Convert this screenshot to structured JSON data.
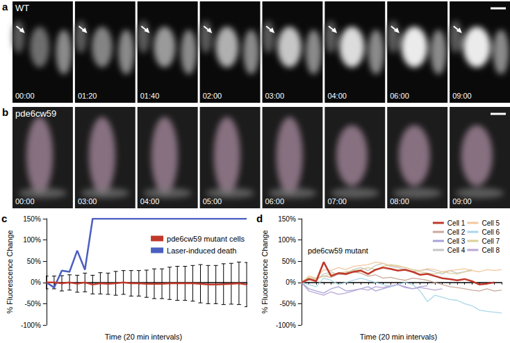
{
  "panels": [
    {
      "panel": "a",
      "title": "WT",
      "timestamps": [
        "00:00",
        "01:20",
        "01:40",
        "02:00",
        "03:00",
        "04:00",
        "06:00",
        "09:00"
      ]
    },
    {
      "panel": "b",
      "title": "pde6cw59",
      "timestamps": [
        "00:00",
        "03:00",
        "04:00",
        "05:00",
        "06:00",
        "07:00",
        "08:00",
        "09:00"
      ]
    }
  ],
  "chart_data": [
    {
      "panel": "c",
      "type": "line",
      "xlabel": "Time (20 min intervals)",
      "ylabel": "% Fluorescence Change",
      "x": [
        0,
        1,
        2,
        3,
        4,
        5,
        6,
        7,
        8,
        9,
        10,
        11,
        12,
        13,
        14,
        15,
        16,
        17,
        18,
        19,
        20,
        21,
        22,
        23,
        24,
        25,
        26
      ],
      "xlim": [
        0,
        26
      ],
      "xticks": [
        0,
        1,
        2,
        3,
        4,
        5,
        6,
        7,
        8,
        9,
        10,
        11,
        12,
        13,
        14,
        15,
        16,
        17,
        18,
        19,
        20,
        21,
        22,
        23,
        24,
        25,
        26
      ],
      "ylim": [
        -100,
        150
      ],
      "yticks": [
        {
          "value": -100,
          "label": "-100%"
        },
        {
          "value": -50,
          "label": "-50%"
        },
        {
          "value": 0,
          "label": "0%"
        },
        {
          "value": 50,
          "label": "50%"
        },
        {
          "value": 100,
          "label": "100%"
        },
        {
          "value": 150,
          "label": "150%"
        }
      ],
      "tick_labels": "y",
      "grid": false,
      "legend": "top-right",
      "series": [
        {
          "name": "pde6cw59 mutant cells",
          "color": "#c0392b",
          "values": [
            0,
            0,
            -2,
            0,
            -3,
            0,
            -5,
            -2,
            -3,
            -2,
            0,
            -2,
            -2,
            -3,
            -3,
            -3,
            -2,
            -2,
            -2,
            -2,
            -3,
            -5,
            -5,
            -4,
            -3,
            -2,
            -5
          ],
          "errors": [
            15,
            15,
            18,
            18,
            20,
            22,
            22,
            25,
            25,
            28,
            28,
            30,
            30,
            32,
            35,
            35,
            38,
            40,
            40,
            42,
            45,
            45,
            45,
            48,
            48,
            50,
            52
          ]
        },
        {
          "name": "Laser-induced death",
          "color": "#4a5fc1",
          "values": [
            0,
            -12,
            28,
            25,
            75,
            30,
            150,
            150,
            150,
            150,
            150,
            150,
            150,
            150,
            150,
            150,
            150,
            150,
            150,
            150,
            150,
            150,
            150,
            150,
            150,
            150,
            150
          ]
        }
      ]
    },
    {
      "panel": "d",
      "type": "line",
      "title": "pde6cw59 mutant",
      "xlabel": "Time (20 min intervals)",
      "ylabel": "% Fluorescence Change",
      "x": [
        0,
        1,
        2,
        3,
        4,
        5,
        6,
        7,
        8,
        9,
        10,
        11,
        12,
        13,
        14,
        15,
        16,
        17,
        18,
        19,
        20,
        21,
        22,
        23,
        24,
        25,
        26,
        27
      ],
      "xlim": [
        0,
        27
      ],
      "xticks": [
        0,
        1,
        2,
        3,
        4,
        5,
        6,
        7,
        8,
        9,
        10,
        11,
        12,
        13,
        14,
        15,
        16,
        17,
        18,
        19,
        20,
        21,
        22,
        23,
        24,
        25,
        26,
        27
      ],
      "ylim": [
        -100,
        150
      ],
      "yticks": [
        {
          "value": -100,
          "label": "-100%"
        },
        {
          "value": -50,
          "label": "-50%"
        },
        {
          "value": 0,
          "label": "0%"
        },
        {
          "value": 50,
          "label": "50%"
        },
        {
          "value": 100,
          "label": "100%"
        },
        {
          "value": 150,
          "label": "150%"
        }
      ],
      "tick_labels": "y",
      "grid": false,
      "legend": "top-right",
      "series": [
        {
          "name": "Cell 1",
          "color": "#c0392b",
          "values": [
            0,
            8,
            3,
            48,
            15,
            22,
            20,
            25,
            28,
            20,
            30,
            35,
            32,
            28,
            30,
            25,
            18,
            20,
            15,
            10,
            8,
            5,
            8,
            3,
            -5,
            -3,
            0,
            null
          ]
        },
        {
          "name": "Cell 2",
          "color": "#c9a89a",
          "values": [
            0,
            5,
            10,
            15,
            12,
            20,
            18,
            25,
            22,
            15,
            18,
            10,
            12,
            8,
            5,
            10,
            8,
            5,
            0,
            -5,
            -10,
            -12,
            -15,
            -18,
            -20,
            -15,
            -20,
            -18
          ]
        },
        {
          "name": "Cell 3",
          "color": "#a7a3d8",
          "values": [
            0,
            -15,
            -20,
            -25,
            -15,
            -10,
            -20,
            -18,
            -15,
            -10,
            -20,
            -15,
            -10,
            -5,
            -12,
            -15,
            -10,
            -8,
            null,
            null,
            null,
            null,
            null,
            null,
            null,
            null,
            null,
            null
          ]
        },
        {
          "name": "Cell 4",
          "color": "#c4c4c4",
          "values": [
            0,
            10,
            5,
            20,
            25,
            18,
            22,
            30,
            35,
            28,
            40,
            45,
            38,
            35,
            30,
            25,
            28,
            30,
            25,
            20,
            28,
            22,
            25,
            30,
            null,
            null,
            null,
            null
          ]
        },
        {
          "name": "Cell 5",
          "color": "#f2c79e",
          "values": [
            0,
            15,
            10,
            30,
            28,
            35,
            30,
            38,
            40,
            42,
            48,
            45,
            40,
            38,
            35,
            30,
            28,
            32,
            30,
            25,
            28,
            30,
            32,
            28,
            25,
            30,
            28,
            30
          ]
        },
        {
          "name": "Cell 6",
          "color": "#a9d7ea",
          "values": [
            0,
            -5,
            -10,
            10,
            5,
            -5,
            0,
            5,
            10,
            5,
            0,
            -5,
            -10,
            -5,
            0,
            -5,
            -20,
            -45,
            -30,
            -35,
            -40,
            -42,
            -50,
            -55,
            -65,
            -68,
            -70,
            -72
          ]
        },
        {
          "name": "Cell 7",
          "color": "#d9cf9b",
          "values": [
            0,
            12,
            8,
            15,
            20,
            22,
            25,
            28,
            30,
            35,
            30,
            38,
            42,
            40,
            35,
            30,
            25,
            22,
            20,
            25,
            22,
            20,
            25,
            28,
            null,
            null,
            null,
            null
          ]
        },
        {
          "name": "Cell 8",
          "color": "#b9a6d4",
          "values": [
            0,
            -20,
            -25,
            -30,
            -22,
            -28,
            -25,
            -20,
            -15,
            -18,
            -10,
            -12,
            -8,
            -5,
            -10,
            -15,
            -12,
            -15,
            -18,
            -15,
            null,
            null,
            null,
            null,
            null,
            null,
            null,
            null
          ]
        }
      ]
    }
  ]
}
